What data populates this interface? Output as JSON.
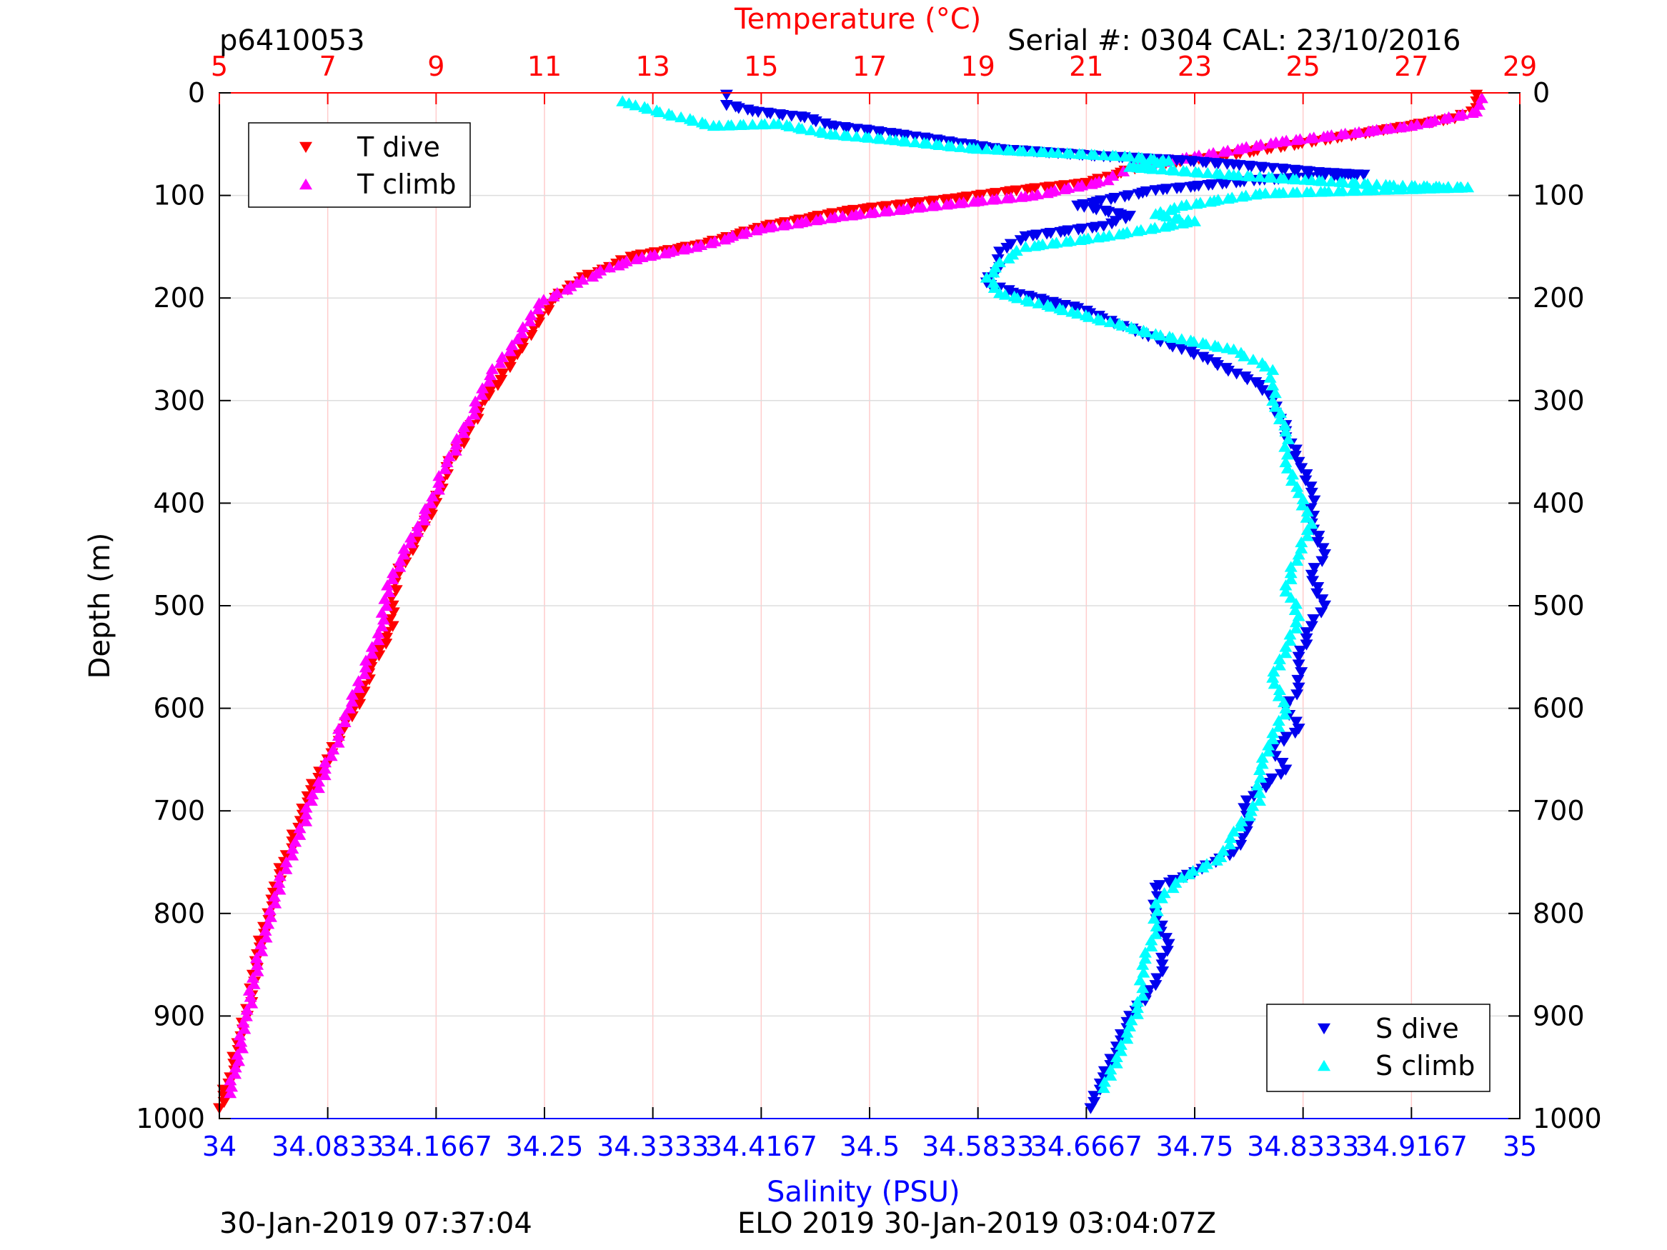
{
  "header": {
    "profile_id": "p6410053",
    "serial_info": "Serial #: 0304  CAL: 23/10/2016"
  },
  "footer": {
    "left_timestamp": "30-Jan-2019 07:37:04",
    "right_info": "ELO 2019 30-Jan-2019 03:04:07Z"
  },
  "colors": {
    "temperature_axis": "#ff0000",
    "salinity_axis": "#0000ff",
    "t_dive": "#ff0000",
    "t_climb": "#ff00ff",
    "s_dive": "#0000ee",
    "s_climb": "#00ffff",
    "grid_temperature": "#ffcccc",
    "grid_depth": "#dddddd"
  },
  "chart_data": {
    "type": "scatter",
    "ylabel": "Depth (m)",
    "ylim": [
      0,
      1000
    ],
    "yticks": [
      "0",
      "100",
      "200",
      "300",
      "400",
      "500",
      "600",
      "700",
      "800",
      "900",
      "1000"
    ],
    "y_reversed": true,
    "temperature_axis": {
      "label": "Temperature (°C)",
      "lim": [
        5,
        29
      ],
      "ticks": [
        "5",
        "7",
        "9",
        "11",
        "13",
        "15",
        "17",
        "19",
        "21",
        "23",
        "25",
        "27",
        "29"
      ],
      "position": "top"
    },
    "salinity_axis": {
      "label": "Salinity (PSU)",
      "lim": [
        34,
        35
      ],
      "ticks": [
        "34",
        "34.0833",
        "34.1667",
        "34.25",
        "34.3333",
        "34.4167",
        "34.5",
        "34.5833",
        "34.6667",
        "34.75",
        "34.8333",
        "34.9167",
        "35"
      ],
      "position": "bottom"
    },
    "grid": true,
    "legends": [
      {
        "placement": "top-left",
        "entries": [
          {
            "label": "T dive",
            "series": 0
          },
          {
            "label": "T climb",
            "series": 1
          }
        ]
      },
      {
        "placement": "bottom-right",
        "entries": [
          {
            "label": "S dive",
            "series": 2
          },
          {
            "label": "S climb",
            "series": 3
          }
        ]
      }
    ],
    "series": [
      {
        "name": "T dive",
        "axis": "temperature",
        "marker": "triangle-down",
        "points": [
          [
            28.2,
            2
          ],
          [
            28.2,
            15
          ],
          [
            27.8,
            25
          ],
          [
            25.5,
            45
          ],
          [
            23.5,
            62
          ],
          [
            22.0,
            72
          ],
          [
            21.4,
            82
          ],
          [
            21.0,
            88
          ],
          [
            19.6,
            96
          ],
          [
            18.6,
            103
          ],
          [
            16.6,
            115
          ],
          [
            15.1,
            130
          ],
          [
            13.9,
            148
          ],
          [
            12.6,
            160
          ],
          [
            12.2,
            170
          ],
          [
            11.7,
            180
          ],
          [
            11.2,
            200
          ],
          [
            10.8,
            230
          ],
          [
            10.5,
            255
          ],
          [
            10.2,
            280
          ],
          [
            9.9,
            300
          ],
          [
            9.6,
            330
          ],
          [
            9.2,
            365
          ],
          [
            9.0,
            400
          ],
          [
            8.6,
            440
          ],
          [
            8.3,
            470
          ],
          [
            8.2,
            500
          ],
          [
            8.2,
            520
          ],
          [
            7.8,
            560
          ],
          [
            7.6,
            590
          ],
          [
            7.3,
            620
          ],
          [
            7.0,
            650
          ],
          [
            6.7,
            680
          ],
          [
            6.5,
            710
          ],
          [
            6.2,
            750
          ],
          [
            6.0,
            780
          ],
          [
            5.9,
            800
          ],
          [
            5.7,
            840
          ],
          [
            5.6,
            880
          ],
          [
            5.4,
            920
          ],
          [
            5.2,
            960
          ],
          [
            5.0,
            990
          ]
        ]
      },
      {
        "name": "T climb",
        "axis": "temperature",
        "marker": "triangle-up",
        "points": [
          [
            28.3,
            5
          ],
          [
            28.2,
            18
          ],
          [
            27.0,
            32
          ],
          [
            24.5,
            48
          ],
          [
            23.0,
            62
          ],
          [
            21.8,
            72
          ],
          [
            21.4,
            85
          ],
          [
            20.0,
            100
          ],
          [
            18.5,
            108
          ],
          [
            16.5,
            120
          ],
          [
            15.0,
            132
          ],
          [
            13.8,
            150
          ],
          [
            12.8,
            160
          ],
          [
            12.2,
            170
          ],
          [
            11.6,
            185
          ],
          [
            10.9,
            205
          ],
          [
            10.5,
            240
          ],
          [
            10.0,
            275
          ],
          [
            9.6,
            320
          ],
          [
            9.2,
            360
          ],
          [
            8.9,
            400
          ],
          [
            8.4,
            450
          ],
          [
            8.1,
            480
          ],
          [
            8.0,
            520
          ],
          [
            7.7,
            560
          ],
          [
            7.4,
            600
          ],
          [
            7.1,
            640
          ],
          [
            6.7,
            690
          ],
          [
            6.4,
            730
          ],
          [
            6.1,
            770
          ],
          [
            5.9,
            810
          ],
          [
            5.7,
            850
          ],
          [
            5.5,
            900
          ],
          [
            5.3,
            950
          ],
          [
            5.2,
            975
          ]
        ]
      },
      {
        "name": "S dive",
        "axis": "salinity",
        "marker": "triangle-down",
        "points": [
          [
            34.39,
            2
          ],
          [
            34.39,
            12
          ],
          [
            34.41,
            18
          ],
          [
            34.45,
            24
          ],
          [
            34.47,
            32
          ],
          [
            34.52,
            40
          ],
          [
            34.6,
            55
          ],
          [
            34.68,
            62
          ],
          [
            34.74,
            66
          ],
          [
            34.78,
            70
          ],
          [
            34.85,
            78
          ],
          [
            34.88,
            80
          ],
          [
            34.8,
            85
          ],
          [
            34.72,
            95
          ],
          [
            34.66,
            110
          ],
          [
            34.7,
            120
          ],
          [
            34.68,
            130
          ],
          [
            34.62,
            140
          ],
          [
            34.6,
            155
          ],
          [
            34.6,
            170
          ],
          [
            34.59,
            185
          ],
          [
            34.61,
            195
          ],
          [
            34.66,
            210
          ],
          [
            34.71,
            235
          ],
          [
            34.76,
            260
          ],
          [
            34.8,
            285
          ],
          [
            34.81,
            300
          ],
          [
            34.82,
            330
          ],
          [
            34.83,
            360
          ],
          [
            34.84,
            390
          ],
          [
            34.84,
            420
          ],
          [
            34.85,
            450
          ],
          [
            34.84,
            470
          ],
          [
            34.85,
            500
          ],
          [
            34.84,
            520
          ],
          [
            34.83,
            550
          ],
          [
            34.83,
            580
          ],
          [
            34.82,
            600
          ],
          [
            34.83,
            620
          ],
          [
            34.81,
            640
          ],
          [
            34.82,
            660
          ],
          [
            34.79,
            690
          ],
          [
            34.79,
            720
          ],
          [
            34.78,
            740
          ],
          [
            34.75,
            760
          ],
          [
            34.72,
            775
          ],
          [
            34.72,
            800
          ],
          [
            34.73,
            830
          ],
          [
            34.72,
            870
          ],
          [
            34.7,
            900
          ],
          [
            34.69,
            930
          ],
          [
            34.68,
            960
          ],
          [
            34.67,
            990
          ]
        ]
      },
      {
        "name": "S climb",
        "axis": "salinity",
        "marker": "triangle-up",
        "points": [
          [
            34.31,
            8
          ],
          [
            34.32,
            12
          ],
          [
            34.38,
            32
          ],
          [
            34.43,
            30
          ],
          [
            34.47,
            40
          ],
          [
            34.52,
            46
          ],
          [
            34.58,
            54
          ],
          [
            34.64,
            58
          ],
          [
            34.7,
            62
          ],
          [
            34.73,
            66
          ],
          [
            34.7,
            72
          ],
          [
            34.78,
            80
          ],
          [
            34.84,
            85
          ],
          [
            34.9,
            90
          ],
          [
            34.96,
            92
          ],
          [
            34.8,
            98
          ],
          [
            34.74,
            110
          ],
          [
            34.72,
            118
          ],
          [
            34.75,
            125
          ],
          [
            34.68,
            140
          ],
          [
            34.62,
            150
          ],
          [
            34.6,
            165
          ],
          [
            34.59,
            180
          ],
          [
            34.6,
            195
          ],
          [
            34.66,
            215
          ],
          [
            34.72,
            235
          ],
          [
            34.78,
            250
          ],
          [
            34.81,
            270
          ],
          [
            34.81,
            300
          ],
          [
            34.82,
            330
          ],
          [
            34.82,
            360
          ],
          [
            34.83,
            390
          ],
          [
            34.84,
            420
          ],
          [
            34.83,
            450
          ],
          [
            34.82,
            480
          ],
          [
            34.83,
            510
          ],
          [
            34.82,
            540
          ],
          [
            34.81,
            570
          ],
          [
            34.82,
            600
          ],
          [
            34.81,
            630
          ],
          [
            34.8,
            660
          ],
          [
            34.8,
            690
          ],
          [
            34.78,
            720
          ],
          [
            34.77,
            745
          ],
          [
            34.74,
            765
          ],
          [
            34.72,
            790
          ],
          [
            34.72,
            820
          ],
          [
            34.71,
            850
          ],
          [
            34.71,
            880
          ],
          [
            34.7,
            910
          ],
          [
            34.69,
            940
          ],
          [
            34.68,
            970
          ]
        ]
      }
    ]
  }
}
